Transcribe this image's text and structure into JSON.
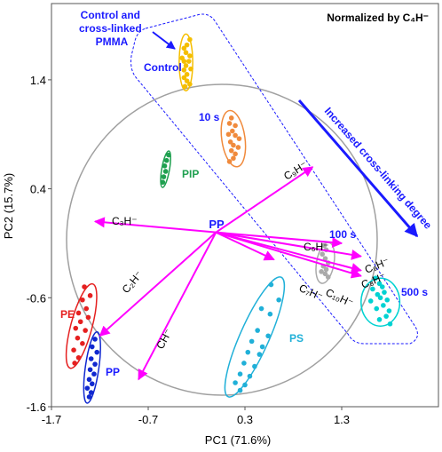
{
  "chart_data": {
    "type": "scatter",
    "title": "Normalized by C₄H⁻",
    "xlabel": "PC1 (71.6%)",
    "ylabel": "PC2 (15.7%)",
    "xlim": [
      -1.7,
      2.3
    ],
    "ylim": [
      -1.6,
      2.1
    ],
    "xticks": [
      -1.7,
      -0.7,
      0.3,
      1.3
    ],
    "yticks": [
      1.4,
      0.4,
      -0.6,
      -1.6
    ],
    "xtick_labels": [
      "-1.7",
      "-0.7",
      "0.3",
      "1.3"
    ],
    "ytick_labels": [
      "1.4",
      "0.4",
      "-0.6",
      "-1.6"
    ],
    "grid": false,
    "colors": {
      "loading_vector": "#ff00ff",
      "circle": "#a0a0a0",
      "group_box": "#1a1aff",
      "annotation": "#1a1aff",
      "ion_label": "#000000"
    },
    "loadings_origin": {
      "label": "PP",
      "x": 0.0,
      "y": 0.0
    },
    "loadings": [
      {
        "ion": "C₃H⁻",
        "x": -1.25,
        "y": 0.1
      },
      {
        "ion": "C₂H⁻",
        "x": -1.2,
        "y": -0.95
      },
      {
        "ion": "CH⁻",
        "x": -0.8,
        "y": -1.35
      },
      {
        "ion": "C₉H⁻",
        "x": 1.0,
        "y": 0.6
      },
      {
        "ion": "C₆H⁻",
        "x": 1.3,
        "y": -0.1
      },
      {
        "ion": "C₉H⁻",
        "x": 1.5,
        "y": -0.22
      },
      {
        "ion": "C₈H⁻",
        "x": 1.5,
        "y": -0.35
      },
      {
        "ion": "C₇H⁻",
        "x": 0.6,
        "y": -0.25
      },
      {
        "ion": "C₁₀H⁻",
        "x": 1.5,
        "y": -0.4
      }
    ],
    "series": [
      {
        "name": "Control",
        "color": "#f5be00",
        "points": [
          [
            -0.27,
            1.77
          ],
          [
            -0.3,
            1.72
          ],
          [
            -0.33,
            1.69
          ],
          [
            -0.31,
            1.65
          ],
          [
            -0.27,
            1.62
          ],
          [
            -0.35,
            1.6
          ],
          [
            -0.33,
            1.57
          ],
          [
            -0.28,
            1.57
          ],
          [
            -0.31,
            1.53
          ],
          [
            -0.33,
            1.49
          ],
          [
            -0.26,
            1.5
          ],
          [
            -0.3,
            1.45
          ],
          [
            -0.33,
            1.42
          ],
          [
            -0.3,
            1.39
          ],
          [
            -0.27,
            1.36
          ],
          [
            -0.32,
            1.34
          ]
        ],
        "ellipse": {
          "cx": -0.31,
          "cy": 1.56,
          "rx": 0.07,
          "ry": 0.26,
          "tilt": 0
        }
      },
      {
        "name": "10 s",
        "color": "#f08a3c",
        "points": [
          [
            0.16,
            1.05
          ],
          [
            0.14,
            1.0
          ],
          [
            0.2,
            0.98
          ],
          [
            0.17,
            0.93
          ],
          [
            0.13,
            0.9
          ],
          [
            0.2,
            0.89
          ],
          [
            0.24,
            0.86
          ],
          [
            0.15,
            0.83
          ],
          [
            0.18,
            0.8
          ],
          [
            0.23,
            0.78
          ],
          [
            0.16,
            0.75
          ],
          [
            0.2,
            0.72
          ],
          [
            0.18,
            0.68
          ],
          [
            0.14,
            0.65
          ]
        ],
        "ellipse": {
          "cx": 0.18,
          "cy": 0.86,
          "rx": 0.12,
          "ry": 0.26,
          "tilt": -8
        }
      },
      {
        "name": "PIP",
        "color": "#1fa050",
        "points": [
          [
            -0.49,
            0.71
          ],
          [
            -0.51,
            0.66
          ],
          [
            -0.53,
            0.61
          ],
          [
            -0.52,
            0.56
          ],
          [
            -0.54,
            0.51
          ],
          [
            -0.55,
            0.46
          ]
        ],
        "ellipse": {
          "cx": -0.52,
          "cy": 0.58,
          "rx": 0.04,
          "ry": 0.17,
          "tilt": 10
        }
      },
      {
        "name": "100 s",
        "color": "#aaaaaa",
        "points": [
          [
            1.12,
            -0.12
          ],
          [
            1.14,
            -0.16
          ],
          [
            1.1,
            -0.2
          ],
          [
            1.13,
            -0.24
          ],
          [
            1.16,
            -0.28
          ],
          [
            1.11,
            -0.31
          ],
          [
            1.14,
            -0.34
          ],
          [
            1.09,
            -0.36
          ],
          [
            1.13,
            -0.38
          ],
          [
            1.16,
            -0.41
          ]
        ],
        "ellipse": {
          "cx": 1.13,
          "cy": -0.28,
          "rx": 0.09,
          "ry": 0.19,
          "tilt": 10
        }
      },
      {
        "name": "500 s",
        "color": "#00d2d2",
        "points": [
          [
            1.65,
            -0.42
          ],
          [
            1.69,
            -0.47
          ],
          [
            1.72,
            -0.5
          ],
          [
            1.62,
            -0.52
          ],
          [
            1.74,
            -0.55
          ],
          [
            1.67,
            -0.57
          ],
          [
            1.7,
            -0.6
          ],
          [
            1.77,
            -0.62
          ],
          [
            1.6,
            -0.63
          ],
          [
            1.73,
            -0.67
          ],
          [
            1.66,
            -0.7
          ],
          [
            1.79,
            -0.72
          ],
          [
            1.76,
            -0.77
          ],
          [
            1.69,
            -0.8
          ],
          [
            1.8,
            -0.84
          ]
        ],
        "ellipse": {
          "cx": 1.7,
          "cy": -0.64,
          "rx": 0.2,
          "ry": 0.22,
          "tilt": 0
        }
      },
      {
        "name": "PS",
        "color": "#20b0d8",
        "points": [
          [
            0.57,
            -0.48
          ],
          [
            0.65,
            -0.62
          ],
          [
            0.47,
            -0.7
          ],
          [
            0.56,
            -0.75
          ],
          [
            0.43,
            -0.9
          ],
          [
            0.54,
            -0.95
          ],
          [
            0.37,
            -1.0
          ],
          [
            0.48,
            -1.05
          ],
          [
            0.33,
            -1.1
          ],
          [
            0.45,
            -1.12
          ],
          [
            0.29,
            -1.2
          ],
          [
            0.4,
            -1.23
          ],
          [
            0.25,
            -1.3
          ],
          [
            0.35,
            -1.32
          ],
          [
            0.2,
            -1.38
          ],
          [
            0.3,
            -1.4
          ],
          [
            0.25,
            -1.45
          ]
        ],
        "ellipse": {
          "cx": 0.4,
          "cy": -0.96,
          "rx": 0.15,
          "ry": 0.6,
          "tilt": 24
        }
      },
      {
        "name": "PE",
        "color": "#e52020",
        "points": [
          [
            -1.36,
            -0.5
          ],
          [
            -1.3,
            -0.58
          ],
          [
            -1.38,
            -0.62
          ],
          [
            -1.34,
            -0.7
          ],
          [
            -1.42,
            -0.74
          ],
          [
            -1.32,
            -0.78
          ],
          [
            -1.4,
            -0.82
          ],
          [
            -1.45,
            -0.88
          ],
          [
            -1.35,
            -0.9
          ],
          [
            -1.43,
            -0.97
          ],
          [
            -1.38,
            -1.02
          ],
          [
            -1.47,
            -1.08
          ],
          [
            -1.42,
            -1.15
          ],
          [
            -1.46,
            -1.2
          ]
        ],
        "ellipse": {
          "cx": -1.39,
          "cy": -0.86,
          "rx": 0.11,
          "ry": 0.4,
          "tilt": 15
        }
      },
      {
        "name": "PP",
        "color": "#1028d0",
        "points": [
          [
            -1.25,
            -0.98
          ],
          [
            -1.28,
            -1.05
          ],
          [
            -1.23,
            -1.1
          ],
          [
            -1.29,
            -1.16
          ],
          [
            -1.25,
            -1.21
          ],
          [
            -1.3,
            -1.26
          ],
          [
            -1.26,
            -1.3
          ],
          [
            -1.31,
            -1.35
          ],
          [
            -1.28,
            -1.39
          ],
          [
            -1.33,
            -1.43
          ],
          [
            -1.29,
            -1.47
          ],
          [
            -1.31,
            -1.51
          ]
        ],
        "ellipse": {
          "cx": -1.28,
          "cy": -1.24,
          "rx": 0.07,
          "ry": 0.33,
          "tilt": 8
        }
      }
    ],
    "annotations": {
      "control_group": [
        "Control and",
        "cross-linked",
        "PMMA"
      ],
      "cross_linking": "Increased cross-linking degree"
    }
  }
}
